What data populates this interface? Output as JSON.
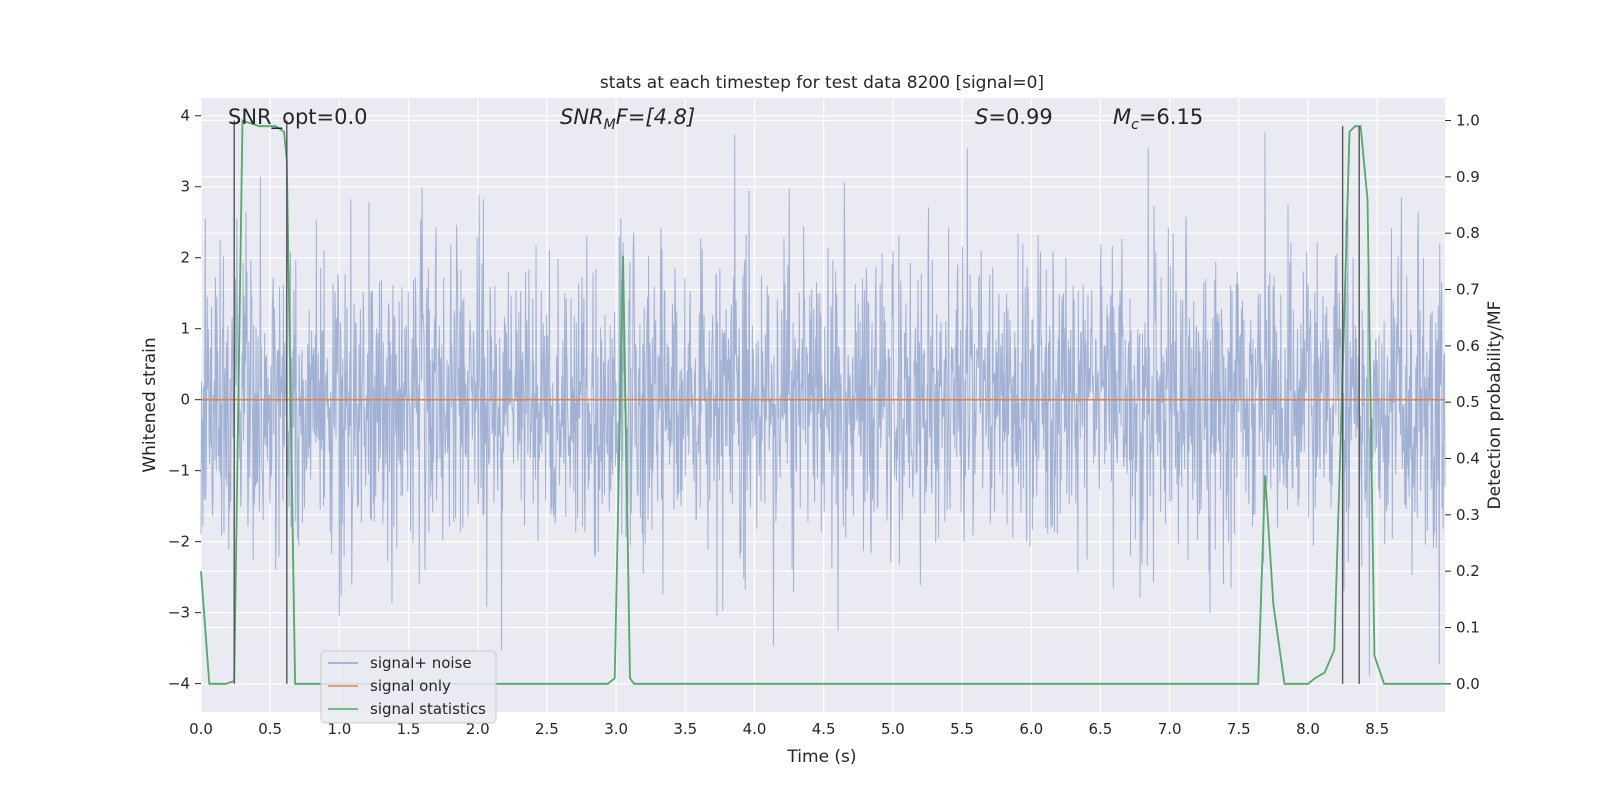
{
  "chart_data": {
    "type": "line",
    "title": "stats at each timestep for test data 8200 [signal=0]",
    "xlabel": "Time (s)",
    "ylabel_left": "Whitened strain",
    "ylabel_right": "Detection probability/MF",
    "xlim": [
      0.0,
      8.99
    ],
    "ylim_left": [
      -4.4,
      4.25
    ],
    "ylim_right": [
      -0.05,
      1.04
    ],
    "x_ticks": [
      "0.0",
      "0.5",
      "1.0",
      "1.5",
      "2.0",
      "2.5",
      "3.0",
      "3.5",
      "4.0",
      "4.5",
      "5.0",
      "5.5",
      "6.0",
      "6.5",
      "7.0",
      "7.5",
      "8.0",
      "8.5"
    ],
    "y_ticks_left": [
      "−4",
      "−3",
      "−2",
      "−1",
      "0",
      "1",
      "2",
      "3",
      "4"
    ],
    "y_ticks_right": [
      "0.0",
      "0.1",
      "0.2",
      "0.3",
      "0.4",
      "0.5",
      "0.6",
      "0.7",
      "0.8",
      "0.9",
      "1.0"
    ],
    "grid": true,
    "legend_position": "lower-left",
    "annotations": {
      "snr_opt": "SNR_opt=0.0",
      "snr_mf_main": "SNR",
      "snr_mf_sub": "M",
      "snr_mf_tail": "F=[4.8]",
      "s_main": "S",
      "s_tail": "=0.99",
      "mc_main": "M",
      "mc_sub": "c",
      "mc_tail": "=6.15"
    },
    "series": [
      {
        "name": "signal+ noise",
        "color": "#8fa3cc",
        "axis": "left",
        "style": "dense noise, |strain| mostly within ±2.5, peaks reaching about ±3.9"
      },
      {
        "name": "signal only",
        "color": "#dd8452",
        "axis": "left",
        "x": [
          0.0,
          8.99
        ],
        "y": [
          0.0,
          0.0
        ]
      },
      {
        "name": "signal statistics",
        "color": "#55a868",
        "axis": "right",
        "x": [
          0.0,
          0.06,
          0.18,
          0.24,
          0.3,
          0.36,
          0.42,
          0.48,
          0.54,
          0.6,
          0.62,
          0.68,
          0.74,
          0.8,
          1.0,
          1.5,
          2.0,
          2.5,
          2.94,
          2.99,
          3.05,
          3.1,
          3.13,
          3.2,
          3.5,
          4.0,
          4.5,
          5.0,
          5.5,
          6.0,
          6.5,
          7.0,
          7.5,
          7.64,
          7.69,
          7.75,
          7.83,
          7.9,
          8.0,
          8.05,
          8.12,
          8.19,
          8.25,
          8.3,
          8.34,
          8.38,
          8.43,
          8.48,
          8.55,
          8.62,
          8.7,
          8.8,
          8.9,
          8.99
        ],
        "y": [
          0.2,
          0.0,
          0.0,
          0.005,
          1.0,
          0.995,
          0.99,
          0.99,
          0.99,
          0.98,
          0.93,
          0.0,
          0.0,
          0.0,
          0.0,
          0.0,
          0.0,
          0.0,
          0.0,
          0.01,
          0.76,
          0.01,
          0.0,
          0.0,
          0.0,
          0.0,
          0.0,
          0.0,
          0.0,
          0.0,
          0.0,
          0.0,
          0.0,
          0.0,
          0.37,
          0.14,
          0.0,
          0.0,
          0.0,
          0.01,
          0.02,
          0.06,
          0.55,
          0.98,
          0.99,
          0.99,
          0.86,
          0.05,
          0.0,
          0.0,
          0.0,
          0.0,
          0.0,
          0.0
        ]
      }
    ],
    "markers_right_axis": [
      {
        "x": 0.24,
        "from": 0.0,
        "to": 1.0
      },
      {
        "x": 0.62,
        "from": 0.0,
        "to": 1.0
      },
      {
        "x": 8.25,
        "from": 0.0,
        "to": 0.99
      },
      {
        "x": 8.37,
        "from": 0.0,
        "to": 0.99
      }
    ]
  }
}
